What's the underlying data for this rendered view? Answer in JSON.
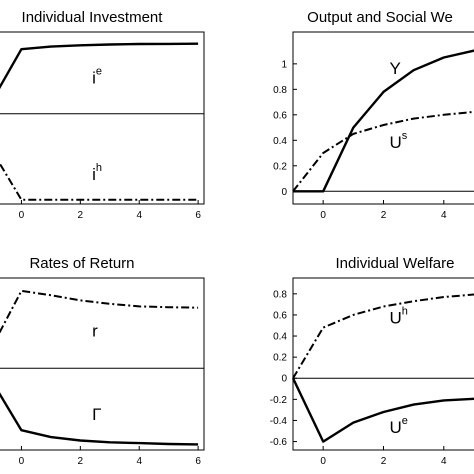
{
  "chart_data": [
    {
      "type": "line",
      "title": "Individual Investment",
      "xlabel": "",
      "ylabel": "",
      "xlim": [
        -1,
        6.2
      ],
      "ylim": [
        -1,
        1
      ],
      "x_ticks": [
        {
          "value": 0,
          "label": "0"
        },
        {
          "value": 2,
          "label": "2"
        },
        {
          "value": 4,
          "label": "4"
        },
        {
          "value": 6,
          "label": "6"
        }
      ],
      "y_ticks": [],
      "zero_line": 0.05,
      "series": [
        {
          "name": "ie",
          "annotation": {
            "base": "i",
            "sup": "e",
            "x": 2.4,
            "y": 0.4
          },
          "style": "solid",
          "x": [
            -1,
            0,
            1,
            2,
            3,
            4,
            5,
            6
          ],
          "y": [
            0.2,
            0.8,
            0.83,
            0.845,
            0.855,
            0.86,
            0.862,
            0.864
          ]
        },
        {
          "name": "ih",
          "annotation": {
            "base": "i",
            "sup": "h",
            "x": 2.4,
            "y": -0.72
          },
          "style": "dashdot",
          "x": [
            -1,
            0,
            1,
            2,
            3,
            4,
            5,
            6
          ],
          "y": [
            -0.38,
            -0.95,
            -0.95,
            -0.95,
            -0.95,
            -0.95,
            -0.95,
            -0.95
          ]
        }
      ]
    },
    {
      "type": "line",
      "title": "Output and Social We",
      "xlabel": "",
      "ylabel": "",
      "xlim": [
        -1,
        5.3
      ],
      "ylim": [
        -0.1,
        1.25
      ],
      "x_ticks": [
        {
          "value": 0,
          "label": "0"
        },
        {
          "value": 2,
          "label": "2"
        },
        {
          "value": 4,
          "label": "4"
        }
      ],
      "y_ticks": [
        {
          "value": 0,
          "label": "0"
        },
        {
          "value": 0.2,
          "label": "0.2"
        },
        {
          "value": 0.4,
          "label": "0.4"
        },
        {
          "value": 0.6,
          "label": "0.6"
        },
        {
          "value": 0.8,
          "label": "0.8"
        },
        {
          "value": 1,
          "label": "1"
        }
      ],
      "zero_line": 0,
      "series": [
        {
          "name": "Y",
          "annotation": {
            "base": "Y",
            "sup": "",
            "x": 2.2,
            "y": 0.92
          },
          "style": "solid",
          "x": [
            -1,
            0,
            1,
            2,
            3,
            4,
            5.3
          ],
          "y": [
            0,
            0,
            0.5,
            0.78,
            0.95,
            1.05,
            1.12
          ]
        },
        {
          "name": "Us",
          "annotation": {
            "base": "U",
            "sup": "s",
            "x": 2.2,
            "y": 0.34
          },
          "style": "dashdot",
          "x": [
            -1,
            0,
            1,
            2,
            3,
            4,
            5.3
          ],
          "y": [
            0,
            0.3,
            0.45,
            0.52,
            0.57,
            0.6,
            0.63
          ]
        }
      ]
    },
    {
      "type": "line",
      "title": "Rates of Return",
      "xlabel": "",
      "ylabel": "",
      "xlim": [
        -1,
        6.2
      ],
      "ylim": [
        -1,
        1
      ],
      "x_ticks": [
        {
          "value": 0,
          "label": "0"
        },
        {
          "value": 2,
          "label": "2"
        },
        {
          "value": 4,
          "label": "4"
        },
        {
          "value": 6,
          "label": "6"
        }
      ],
      "y_ticks": [],
      "zero_line": -0.05,
      "series": [
        {
          "name": "r",
          "annotation": {
            "base": "r",
            "sup": "",
            "x": 2.4,
            "y": 0.32
          },
          "style": "dashdot",
          "x": [
            -1,
            0,
            1,
            2,
            3,
            4,
            5,
            6
          ],
          "y": [
            0.2,
            0.85,
            0.8,
            0.74,
            0.7,
            0.67,
            0.66,
            0.655
          ]
        },
        {
          "name": "Γ",
          "annotation": {
            "base": "Γ",
            "sup": "",
            "x": 2.4,
            "y": -0.65
          },
          "style": "solid",
          "x": [
            -1,
            0,
            1,
            2,
            3,
            4,
            5,
            6
          ],
          "y": [
            -0.2,
            -0.77,
            -0.85,
            -0.89,
            -0.91,
            -0.92,
            -0.93,
            -0.935
          ]
        }
      ]
    },
    {
      "type": "line",
      "title": "Individual Welfare",
      "xlabel": "",
      "ylabel": "",
      "xlim": [
        -1,
        5.3
      ],
      "ylim": [
        -0.68,
        0.95
      ],
      "x_ticks": [
        {
          "value": 0,
          "label": "0"
        },
        {
          "value": 2,
          "label": "2"
        },
        {
          "value": 4,
          "label": "4"
        }
      ],
      "y_ticks": [
        {
          "value": -0.6,
          "label": "-0.6"
        },
        {
          "value": -0.4,
          "label": "-0.4"
        },
        {
          "value": -0.2,
          "label": "-0.2"
        },
        {
          "value": 0,
          "label": "0"
        },
        {
          "value": 0.2,
          "label": "0.2"
        },
        {
          "value": 0.4,
          "label": "0.4"
        },
        {
          "value": 0.6,
          "label": "0.6"
        },
        {
          "value": 0.8,
          "label": "0.8"
        }
      ],
      "zero_line": 0,
      "series": [
        {
          "name": "Uh",
          "annotation": {
            "base": "U",
            "sup": "h",
            "x": 2.2,
            "y": 0.52
          },
          "style": "dashdot",
          "x": [
            -1,
            0,
            1,
            2,
            3,
            4,
            5.3
          ],
          "y": [
            0,
            0.48,
            0.6,
            0.68,
            0.73,
            0.77,
            0.8
          ]
        },
        {
          "name": "Ue",
          "annotation": {
            "base": "U",
            "sup": "e",
            "x": 2.2,
            "y": -0.52
          },
          "style": "solid",
          "x": [
            -1,
            0,
            1,
            2,
            3,
            4,
            5.3
          ],
          "y": [
            0,
            -0.6,
            -0.42,
            -0.32,
            -0.25,
            -0.21,
            -0.19
          ]
        }
      ]
    }
  ]
}
